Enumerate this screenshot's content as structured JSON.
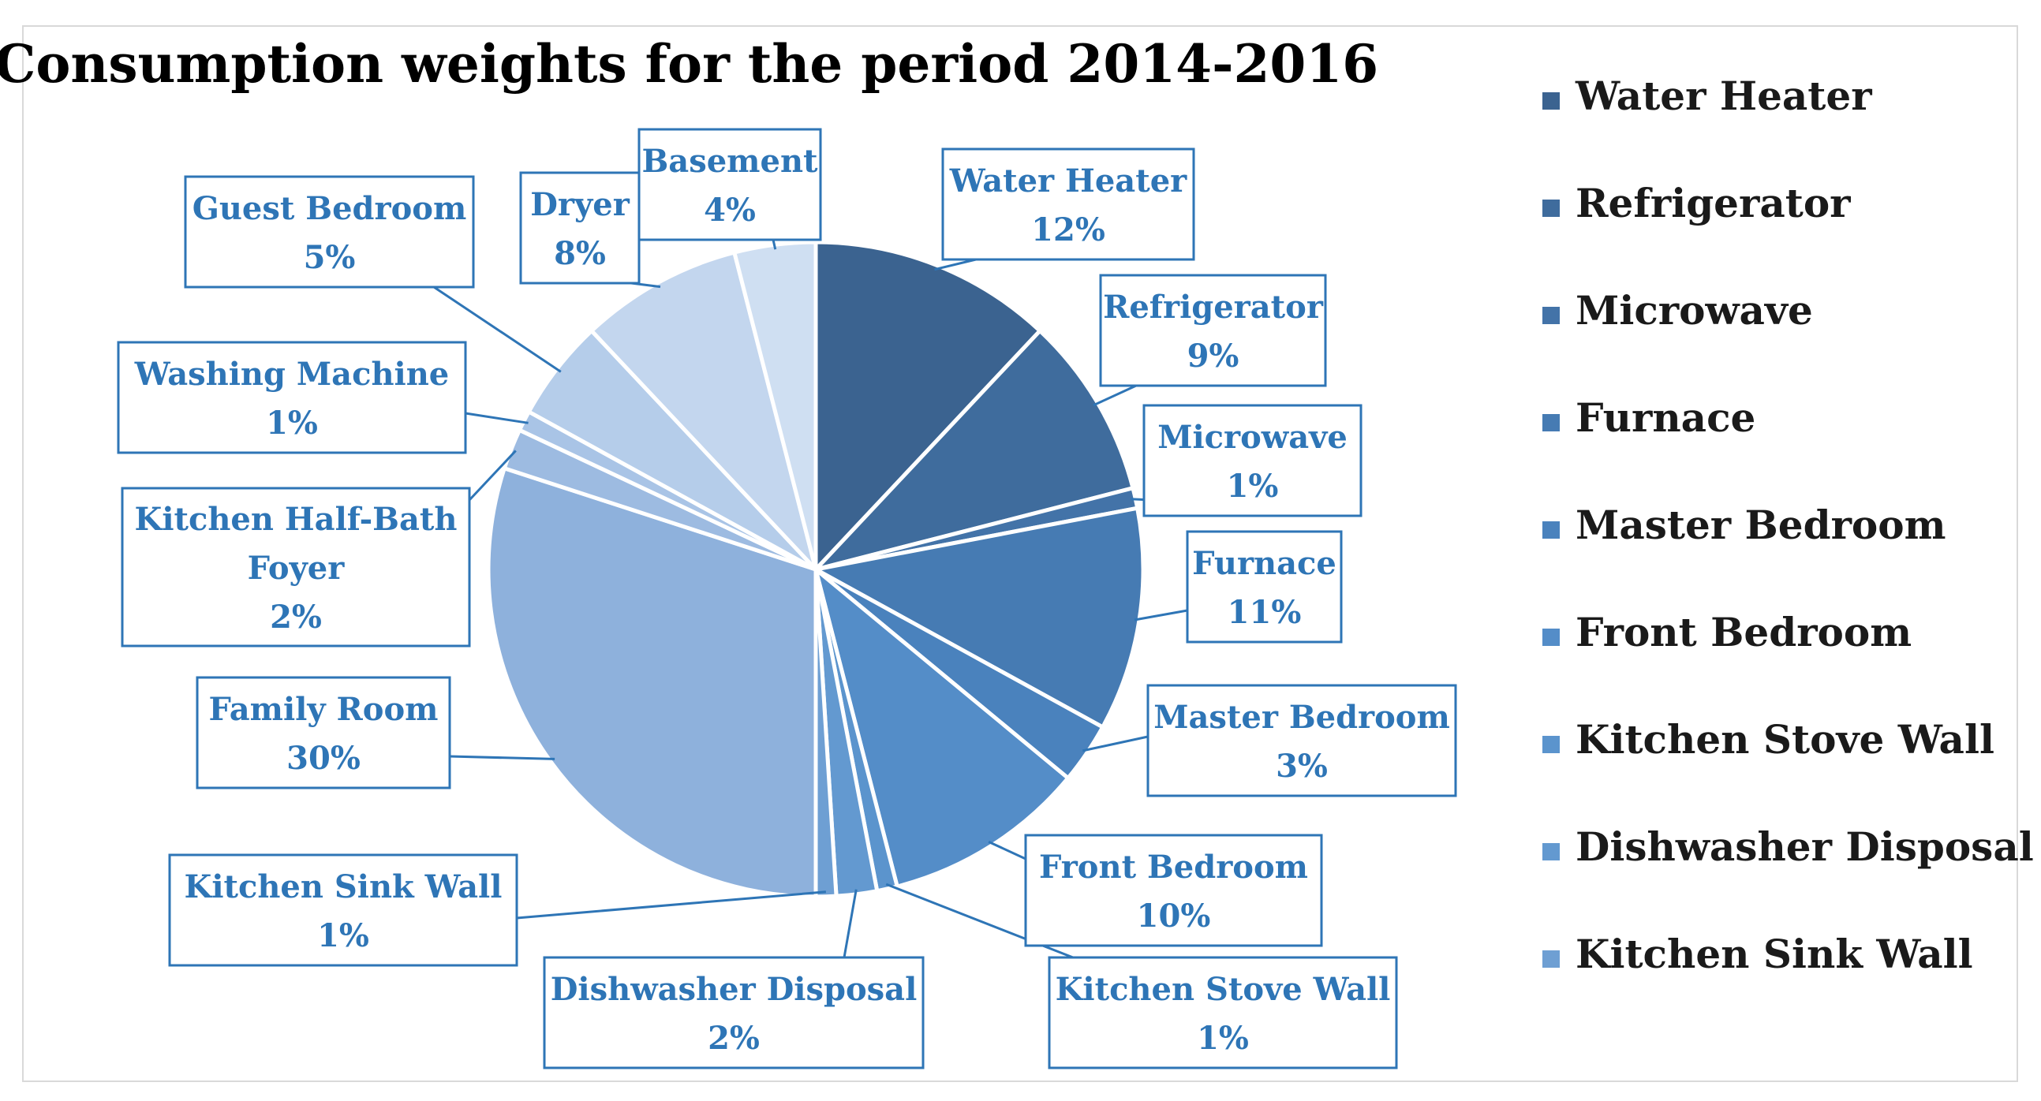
{
  "chart_data": {
    "type": "pie",
    "title": "Consumption weights for the period 2014-2016",
    "legend_position": "right",
    "slices": [
      {
        "label": "Water Heater",
        "label_lines": [
          "Water Heater"
        ],
        "value": 12,
        "value_label": "12%",
        "color": "#3b6390"
      },
      {
        "label": "Refrigerator",
        "label_lines": [
          "Refrigerator"
        ],
        "value": 9,
        "value_label": "9%",
        "color": "#3f6c9d"
      },
      {
        "label": "Microwave",
        "label_lines": [
          "Microwave"
        ],
        "value": 1,
        "value_label": "1%",
        "color": "#4373a8"
      },
      {
        "label": "Furnace",
        "label_lines": [
          "Furnace"
        ],
        "value": 11,
        "value_label": "11%",
        "color": "#467bb3"
      },
      {
        "label": "Master Bedroom",
        "label_lines": [
          "Master Bedroom"
        ],
        "value": 3,
        "value_label": "3%",
        "color": "#4a82bd"
      },
      {
        "label": "Front Bedroom",
        "label_lines": [
          "Front Bedroom"
        ],
        "value": 10,
        "value_label": "10%",
        "color": "#548dc8"
      },
      {
        "label": "Kitchen Stove Wall",
        "label_lines": [
          "Kitchen Stove Wall"
        ],
        "value": 1,
        "value_label": "1%",
        "color": "#5b94cd"
      },
      {
        "label": "Dishwasher Disposal",
        "label_lines": [
          "Dishwasher Disposal"
        ],
        "value": 2,
        "value_label": "2%",
        "color": "#6399d0"
      },
      {
        "label": "Kitchen Sink Wall",
        "label_lines": [
          "Kitchen Sink Wall"
        ],
        "value": 1,
        "value_label": "1%",
        "color": "#6e9fd3"
      },
      {
        "label": "Family Room",
        "label_lines": [
          "Family Room"
        ],
        "value": 30,
        "value_label": "30%",
        "color": "#8eb1dc"
      },
      {
        "label": "Kitchen Half-Bath Foyer",
        "label_lines": [
          "Kitchen Half-Bath",
          "Foyer"
        ],
        "value": 2,
        "value_label": "2%",
        "color": "#9dbbe1"
      },
      {
        "label": "Washing Machine",
        "label_lines": [
          "Washing Machine"
        ],
        "value": 1,
        "value_label": "1%",
        "color": "#a9c4e6"
      },
      {
        "label": "Guest Bedroom",
        "label_lines": [
          "Guest Bedroom"
        ],
        "value": 5,
        "value_label": "5%",
        "color": "#b5cdea"
      },
      {
        "label": "Dryer",
        "label_lines": [
          "Dryer"
        ],
        "value": 8,
        "value_label": "8%",
        "color": "#c3d6ee"
      },
      {
        "label": "Basement",
        "label_lines": [
          "Basement"
        ],
        "value": 4,
        "value_label": "4%",
        "color": "#cfdff2"
      }
    ],
    "legend_entries": [
      {
        "label": "Water Heater",
        "color": "#3b6390"
      },
      {
        "label": "Refrigerator",
        "color": "#3f6c9d"
      },
      {
        "label": "Microwave",
        "color": "#4373a8"
      },
      {
        "label": "Furnace",
        "color": "#467bb3"
      },
      {
        "label": "Master Bedroom",
        "color": "#4a82bd"
      },
      {
        "label": "Front Bedroom",
        "color": "#548dc8"
      },
      {
        "label": "Kitchen Stove Wall",
        "color": "#5b94cd"
      },
      {
        "label": "Dishwasher Disposal",
        "color": "#6399d0"
      },
      {
        "label": "Kitchen Sink Wall",
        "color": "#6e9fd3"
      }
    ],
    "label_color": "#2e75b6"
  }
}
